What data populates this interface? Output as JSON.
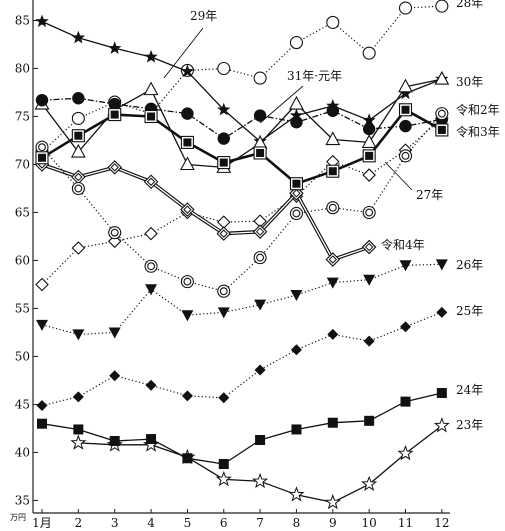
{
  "chart_data": {
    "type": "line",
    "title": "",
    "xlabel": "",
    "ylabel": "",
    "y_unit": "万円",
    "categories": [
      "1月",
      "2",
      "3",
      "4",
      "5",
      "6",
      "7",
      "8",
      "9",
      "10",
      "11",
      "12"
    ],
    "ylim": [
      34,
      88
    ],
    "yticks": [
      35,
      40,
      45,
      50,
      55,
      60,
      65,
      70,
      75,
      80,
      85
    ],
    "grid": false,
    "legend": "labels next to lines",
    "series": [
      {
        "name": "23年",
        "line": "solid",
        "marker": "star-open",
        "values": [
          null,
          41.0,
          40.8,
          40.8,
          39.5,
          37.2,
          37.0,
          35.6,
          34.8,
          36.7,
          39.9,
          42.8
        ]
      },
      {
        "name": "24年",
        "line": "solid",
        "marker": "square-filled",
        "values": [
          43.0,
          42.4,
          41.2,
          41.4,
          39.4,
          38.8,
          41.3,
          42.4,
          43.1,
          43.3,
          45.3,
          46.2
        ]
      },
      {
        "name": "25年",
        "line": "dotted",
        "marker": "diamond-filled",
        "values": [
          44.9,
          45.8,
          48.0,
          47.0,
          45.9,
          45.7,
          48.6,
          50.7,
          52.3,
          51.6,
          53.1,
          54.6
        ]
      },
      {
        "name": "26年",
        "line": "dotted",
        "marker": "triangle-down-filled",
        "values": [
          53.3,
          52.3,
          52.5,
          57.0,
          54.3,
          54.6,
          55.4,
          56.4,
          57.7,
          58.0,
          59.5,
          59.6
        ]
      },
      {
        "name": "27年",
        "line": "dotted",
        "marker": "diamond-open",
        "values": [
          57.5,
          61.3,
          62.0,
          62.8,
          65.0,
          64.0,
          64.1,
          66.7,
          70.3,
          68.9,
          71.5,
          74.8
        ]
      },
      {
        "name": "令和4年",
        "line": "double",
        "marker": "diamond-double",
        "values": [
          70.0,
          68.7,
          69.7,
          68.2,
          65.3,
          62.8,
          63.0,
          67.0,
          60.1,
          61.4,
          null,
          null
        ]
      },
      {
        "name": "28年",
        "line": "dotted",
        "marker": "circle-open",
        "values": [
          71.3,
          74.8,
          76.5,
          75.3,
          79.8,
          80.0,
          79.0,
          82.7,
          84.8,
          81.6,
          86.3,
          86.5
        ]
      },
      {
        "name": "29年",
        "line": "solid",
        "marker": "star-filled",
        "values": [
          84.9,
          83.2,
          82.1,
          81.2,
          79.7,
          75.7,
          72.4,
          75.1,
          76.1,
          74.6,
          77.4,
          78.9
        ]
      },
      {
        "name": "30年",
        "line": "solid",
        "marker": "triangle-up-open",
        "values": [
          76.3,
          71.3,
          75.7,
          77.8,
          70.0,
          69.7,
          72.2,
          76.3,
          72.6,
          72.3,
          78.1,
          78.9
        ]
      },
      {
        "name": "31年·元年",
        "line": "dash-dot",
        "marker": "circle-filled",
        "values": [
          76.7,
          76.9,
          76.3,
          75.8,
          75.3,
          72.7,
          75.1,
          74.4,
          75.6,
          73.7,
          74.0,
          74.7
        ]
      },
      {
        "name": "令和2年",
        "line": "dotted",
        "marker": "circle-double",
        "values": [
          71.8,
          67.5,
          62.9,
          59.4,
          57.8,
          56.8,
          60.3,
          64.9,
          65.5,
          65.0,
          70.9,
          75.3
        ]
      },
      {
        "name": "令和3年",
        "line": "thick",
        "marker": "square-double",
        "values": [
          70.7,
          73.0,
          75.2,
          75.0,
          72.3,
          70.2,
          71.2,
          68.0,
          69.3,
          70.9,
          75.7,
          73.6
        ]
      }
    ],
    "labels": [
      {
        "text": "28年",
        "series": "28年"
      },
      {
        "text": "29年",
        "series": "29年"
      },
      {
        "text": "31年·元年",
        "series": "31年·元年"
      },
      {
        "text": "30年",
        "series": "30年"
      },
      {
        "text": "令和2年",
        "series": "令和2年"
      },
      {
        "text": "令和3年",
        "series": "令和3年"
      },
      {
        "text": "27年",
        "series": "27年"
      },
      {
        "text": "令和4年",
        "series": "令和4年"
      },
      {
        "text": "26年",
        "series": "26年"
      },
      {
        "text": "25年",
        "series": "25年"
      },
      {
        "text": "24年",
        "series": "24年"
      },
      {
        "text": "23年",
        "series": "23年"
      }
    ]
  }
}
